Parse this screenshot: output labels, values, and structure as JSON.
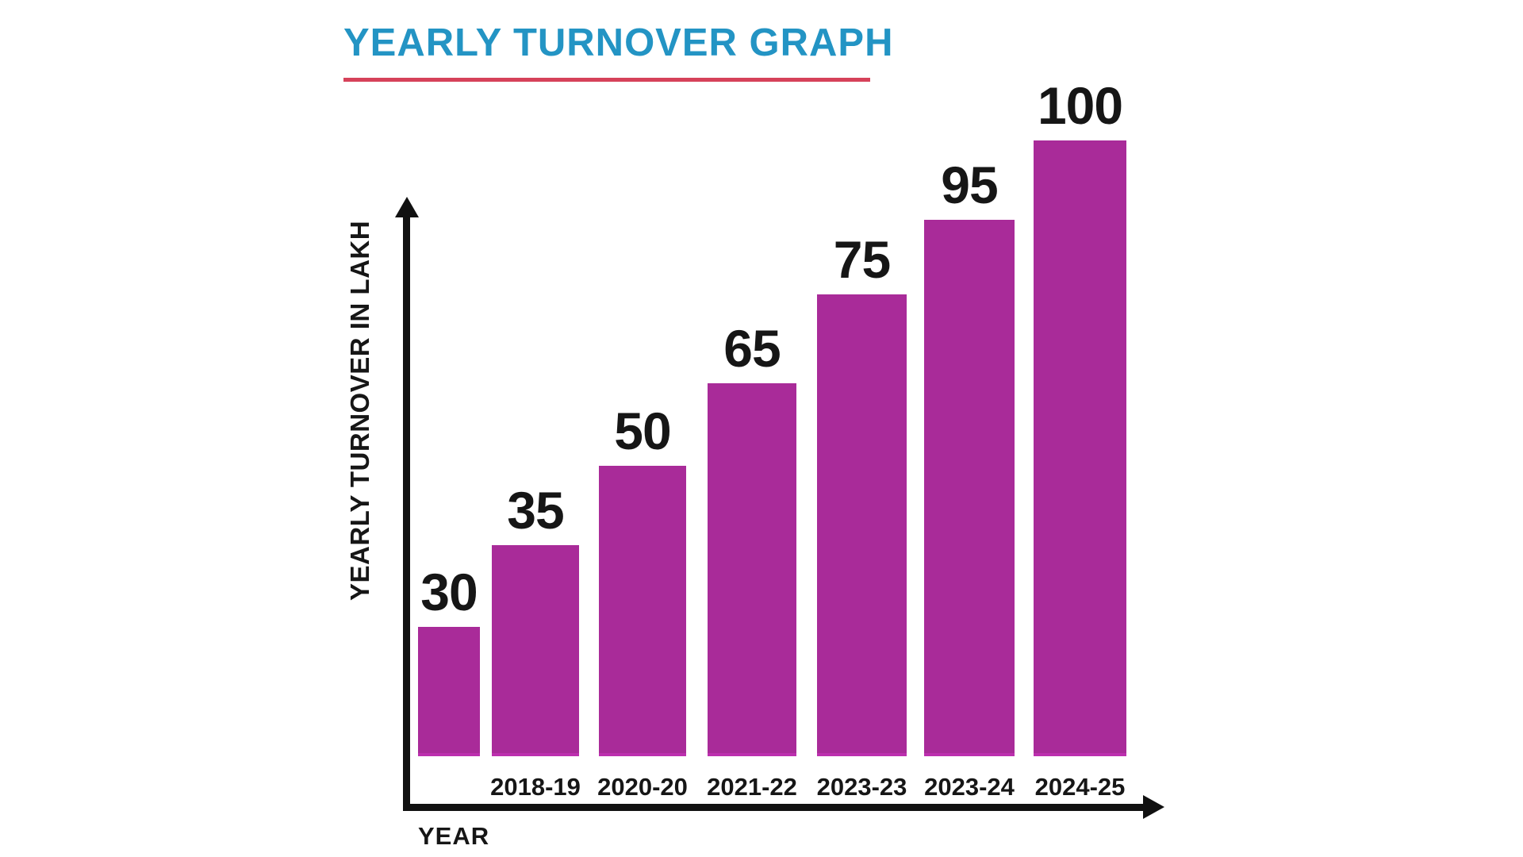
{
  "header": {
    "title": "YEARLY TURNOVER GRAPH",
    "title_color": "#2394c4",
    "underline_color": "#d6425a"
  },
  "chart_data": {
    "type": "bar",
    "title": "YEARLY TURNOVER GRAPH",
    "xlabel": "YEAR",
    "ylabel": "YEARLY TURNOVER IN LAKH",
    "categories": [
      "",
      "2018-19",
      "2020-20",
      "2021-22",
      "2023-23",
      "2023-24",
      "2024-25"
    ],
    "values": [
      30,
      35,
      50,
      65,
      75,
      95,
      100
    ],
    "ylim": [
      0,
      100
    ],
    "bar_color": "#a92b99",
    "axis_color": "#111111",
    "label_color": "#161616",
    "value_labels_shown": true,
    "axis_arrows": true,
    "grid": false,
    "legend": false,
    "note": "first bar has no year tick label"
  }
}
